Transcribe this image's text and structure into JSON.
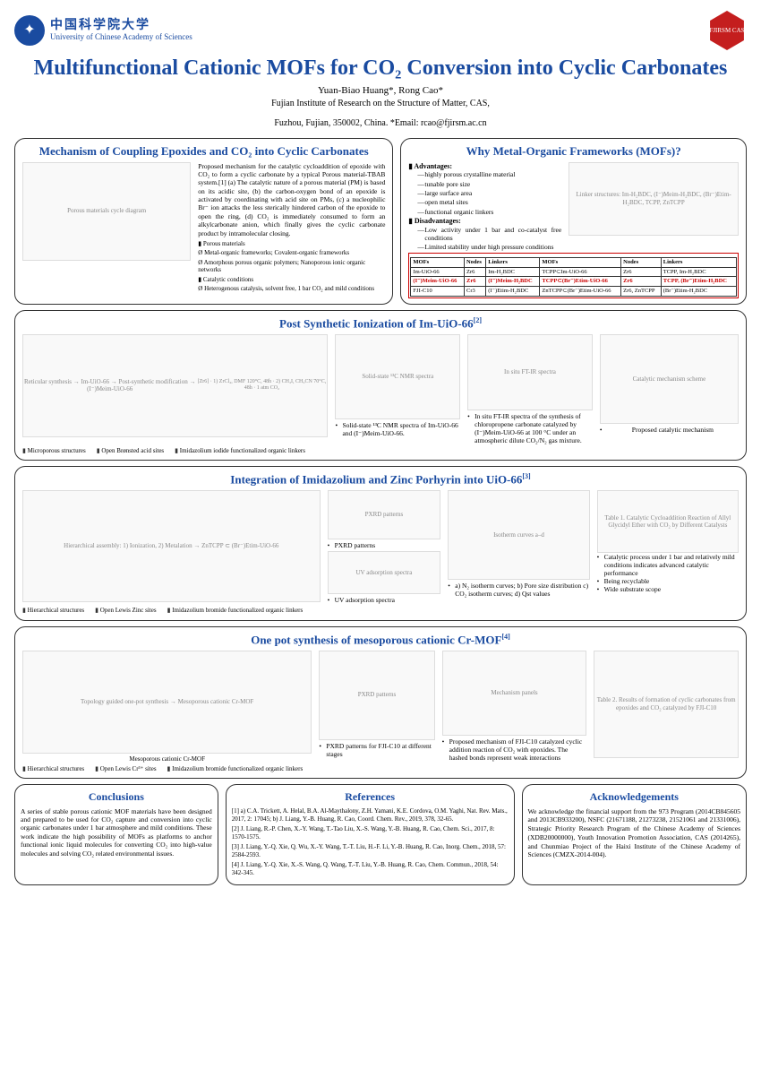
{
  "header": {
    "uni_cn": "中国科学院大学",
    "uni_en": "University of Chinese Academy of Sciences",
    "badge_text": "FJIRSM CAS"
  },
  "title": "Multifunctional Cationic MOFs for CO₂ Conversion into Cyclic Carbonates",
  "authors": "Yuan-Biao Huang*, Rong Cao*",
  "affiliation": "Fujian Institute of Research on the Structure of Matter, CAS,",
  "affil2": "Fuzhou, Fujian, 350002, China. *Email: rcao@fjirsm.ac.cn",
  "colors": {
    "title": "#1a4ba0",
    "border": "#333333",
    "highlight": "#cc0000",
    "badge": "#c41e1e"
  },
  "sec_mechanism": {
    "title": "Mechanism of Coupling Epoxides and CO₂ into Cyclic Carbonates",
    "text": "Proposed mechanism for the catalytic cycloaddition of epoxide with CO₂ to form a cyclic carbonate by a typical Porous material-TBAB system.[1] (a) The catalytic nature of a porous material (PM) is based on its acidic site, (b) the carbon-oxygen bond of an epoxide is activated by coordinating with acid site on PMs, (c) a nucleophilic Br⁻ ion attacks the less sterically hindered carbon of the epoxide to open the ring, (d) CO₂ is immediately consumed to form an alkylcarbonate anion, which finally gives the cyclic carbonate product by intramolecular closing.",
    "notes": [
      "Porous materials",
      "Metal-organic frameworks; Covalent-organic frameworks",
      "Amorphous porous organic polymers; Nanoporous ionic organic networks",
      "Catalytic conditions",
      "Heterogenous catalysis, solvent free, 1 bar CO₂ and mild conditions"
    ],
    "fig_label": "Porous materials cycle diagram"
  },
  "sec_why": {
    "title": "Why Metal-Organic Frameworks (MOFs)?",
    "adv_label": "▮ Advantages:",
    "adv": [
      "highly porous crystalline material",
      "tunable pore size",
      "large surface area",
      "open metal sites",
      "functional organic linkers"
    ],
    "dis_label": "▮ Disadvantages:",
    "dis": [
      "Low activity under 1 bar and co-catalyst free conditions",
      "Limited stability under high pressure conditions"
    ],
    "fig_label": "Linker structures: Im-H₂BDC, (I⁻)Meim-H₂BDC, (Br⁻)Etim-H₂BDC, TCPP, ZnTCPP",
    "table": {
      "headers": [
        "MOFs",
        "Nodes",
        "Linkers",
        "MOFs",
        "Nodes",
        "Linkers"
      ],
      "rows": [
        [
          "Im-UiO-66",
          "Zr6",
          "Im-H₂BDC",
          "TCPP⊂Im-UiO-66",
          "Zr6",
          "TCPP, Im-H₂BDC"
        ],
        [
          "(I⁻)Meim-UiO-66",
          "Zr6",
          "(I⁻)Meim-H₂BDC",
          "TCPP⊂(Br⁻)Etim-UiO-66",
          "Zr6",
          "TCPP, (Br⁻)Etim-H₂BDC"
        ],
        [
          "FJI-C10",
          "Cr3",
          "(I⁻)Etim-H₂BDC",
          "ZnTCPP⊂(Br⁻)Etim-UiO-66",
          "Zr6, ZnTCPP",
          "(Br⁻)Etim-H₂BDC"
        ]
      ],
      "highlight_rows": [
        1
      ]
    }
  },
  "sec_post": {
    "title": "Post Synthetic Ionization of Im-UiO-66",
    "ref": "[2]",
    "fig1": "Reticular synthesis → Im-UiO-66 → Post-synthetic modification → (I⁻)Meim-UiO-66",
    "labels1": "[Zr6] · 1) ZrCl₄, DMF 120°C, 48h · 2) CH₃I, CH₃CN 70°C, 48h · 1 atm CO₂",
    "fig2": "Solid-state ¹³C NMR spectra",
    "cap2": "Solid-state ¹³C NMR spectra of Im-UiO-66 and (I⁻)Meim-UiO-66.",
    "fig3": "In situ FT-IR spectra",
    "cap3": "In situ FT-IR spectra of the synthesis of chloropropene carbonate catalyzed by (I⁻)Meim-UiO-66 at 100 °C under an atmospheric dilute CO₂/N₂ gas mixture.",
    "fig4": "Catalytic mechanism scheme",
    "cap4": "Proposed catalytic mechanism",
    "footnotes": [
      "Microporous structures",
      "Open Brønsted acid sites",
      "Imidazolium iodide functionalized organic linkers"
    ]
  },
  "sec_int": {
    "title": "Integration of Imidazolium and Zinc Porhyrin into UiO-66",
    "ref": "[3]",
    "fig1": "Hierarchical assembly: 1) Ionization, 2) Metalation → ZnTCPP ⊂ (Br⁻)Etim-UiO-66",
    "fig2": "PXRD patterns",
    "cap2": "PXRD patterns",
    "fig3": "UV adsorption spectra",
    "cap3": "UV adsorption spectra",
    "fig4": "Isotherm curves a–d",
    "cap4": "a) N₂ isotherm curves; b) Pore size distribution c) CO₂ isotherm curves; d) Qst values",
    "fig5": "Table 1. Catalytic Cycloaddition Reaction of Allyl Glycidyl Ether with CO₂ by Different Catalysts",
    "bullets": [
      "Catalytic process under 1 bar and relatively mild conditions indicates advanced catalytic performance",
      "Being recyclable",
      "Wide substrate scope"
    ],
    "footnotes": [
      "Hierarchical structures",
      "Open Lewis Zinc sites",
      "Imidazolium bromide functionalized organic linkers"
    ]
  },
  "sec_one": {
    "title": "One pot synthesis of mesoporous cationic Cr-MOF",
    "ref": "[4]",
    "fig1": "Topology guided one-pot synthesis → Mesoporous cationic Cr-MOF",
    "cap1": "Mesoporous cationic Cr-MOF",
    "fig2": "PXRD patterns",
    "cap2": "PXRD patterns for FJI-C10 at different stages",
    "fig3": "Mechanism panels",
    "cap3": "Proposed mechanism of FJI-C10 catalyzed cyclic addition reaction of CO₂ with epoxides. The hashed bonds represent weak interactions",
    "fig4": "Table 2. Results of formation of cyclic carbonates from epoxides and CO₂ catalyzed by FJI-C10",
    "footnotes": [
      "Hierarchical structures",
      "Open Lewis Cr³⁺ sites",
      "Imidazolium bromide functionalized organic linkers"
    ]
  },
  "conclusions": {
    "title": "Conclusions",
    "text": "A series of stable porous cationic MOF materials have been designed and prepared to be used for CO₂ capture and conversion into cyclic organic carbonates under 1 bar atmosphere and mild conditions. These work indicate the high possibility of MOFs as platforms to anchor functional ionic liquid molecules for converting CO₂ into high-value molecules and solving CO₂ related environmental issues."
  },
  "references": {
    "title": "References",
    "items": [
      "[1] a) C.A. Trickett, A. Helal, B.A. Al-Maythalony, Z.H. Yamani, K.E. Cordova, O.M. Yaghi, Nat. Rev. Mats., 2017, 2: 17045; b) J. Liang, Y.-B. Huang, R. Cao, Coord. Chem. Rev., 2019, 378, 32-65.",
      "[2] J. Liang, R.-P. Chen, X.-Y. Wang, T.-Tao Liu, X.-S. Wang, Y.-B. Huang, R. Cao, Chem. Sci., 2017, 8: 1570-1575.",
      "[3] J. Liang, Y.-Q. Xie, Q. Wu, X.-Y. Wang, T.-T. Liu, H.-F. Li, Y.-B. Huang, R. Cao, Inorg. Chem., 2018, 57: 2584-2593.",
      "[4] J. Liang, Y.-Q. Xie, X.-S. Wang, Q. Wang, T.-T. Liu, Y.-B. Huang, R. Cao, Chem. Commun., 2018, 54: 342-345."
    ]
  },
  "acknowledgements": {
    "title": "Acknowledgements",
    "text": "We acknowledge the financial support from the 973 Program (2014CB845605 and 2013CB933200), NSFC (21671188, 21273238, 21521061 and 21331006), Strategic Priority Research Program of the Chinese Academy of Sciences (XDB20000000), Youth Innovation Promotion Association, CAS (2014265), and Chunmiao Project of the Haixi Institute of the Chinese Academy of Sciences (CMZX-2014-004)."
  }
}
